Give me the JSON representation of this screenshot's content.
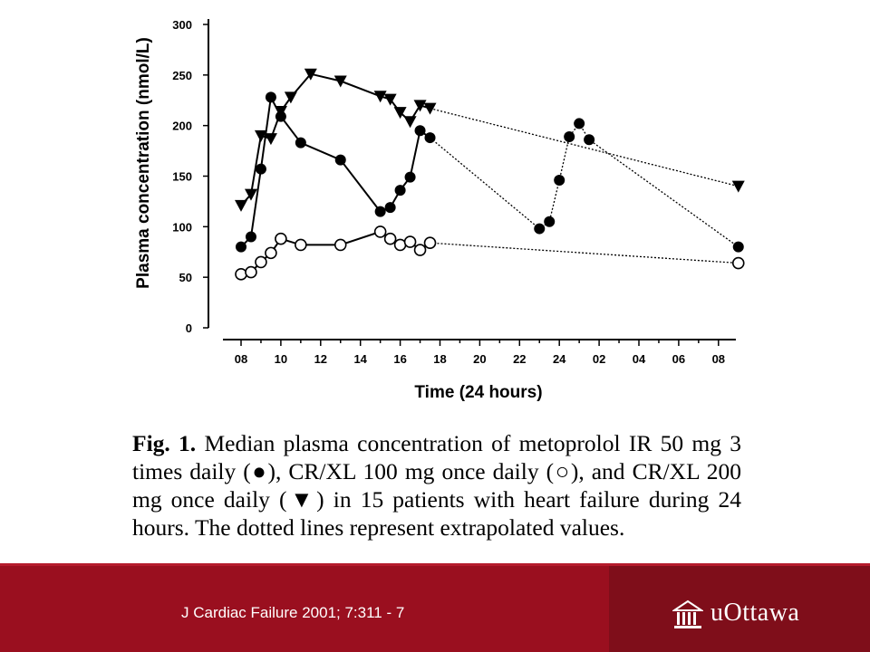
{
  "chart_data": {
    "type": "line",
    "ylabel": "Plasma concentration (nmol/L)",
    "xlabel": "Time (24 hours)",
    "ylim": [
      0,
      300
    ],
    "yticks": [
      "0",
      "50",
      "100",
      "150",
      "200",
      "250",
      "300"
    ],
    "xticks": [
      "08",
      "10",
      "12",
      "14",
      "16",
      "18",
      "20",
      "22",
      "24",
      "02",
      "04",
      "06",
      "08"
    ],
    "series": [
      {
        "marker": "filled-circle",
        "solid": [
          [
            8,
            80
          ],
          [
            8.5,
            90
          ],
          [
            9,
            157
          ],
          [
            9.5,
            228
          ],
          [
            10,
            209
          ],
          [
            11,
            183
          ],
          [
            13,
            166
          ],
          [
            15,
            115
          ],
          [
            15.5,
            119
          ],
          [
            16,
            136
          ],
          [
            16.5,
            149
          ],
          [
            17,
            195
          ],
          [
            17.5,
            188
          ]
        ],
        "dotted": [
          [
            17.5,
            188
          ],
          [
            23,
            98
          ],
          [
            23.5,
            105
          ],
          [
            24,
            146
          ],
          [
            24.5,
            189
          ],
          [
            25,
            202
          ],
          [
            25.5,
            186
          ],
          [
            33,
            80
          ]
        ]
      },
      {
        "marker": "open-circle",
        "solid": [
          [
            8,
            53
          ],
          [
            8.5,
            55
          ],
          [
            9,
            65
          ],
          [
            9.5,
            74
          ],
          [
            10,
            88
          ],
          [
            11,
            82
          ],
          [
            13,
            82
          ],
          [
            15,
            95
          ],
          [
            15.5,
            88
          ],
          [
            16,
            82
          ],
          [
            16.5,
            85
          ],
          [
            17,
            77
          ],
          [
            17.5,
            84
          ]
        ],
        "dotted": [
          [
            17.5,
            84
          ],
          [
            33,
            64
          ]
        ]
      },
      {
        "marker": "filled-triangle-down",
        "solid": [
          [
            8,
            121
          ],
          [
            8.5,
            132
          ],
          [
            9,
            190
          ],
          [
            9.5,
            187
          ],
          [
            10,
            214
          ],
          [
            10.5,
            228
          ],
          [
            11.5,
            251
          ],
          [
            13,
            244
          ],
          [
            15,
            229
          ],
          [
            15.5,
            226
          ],
          [
            16,
            213
          ],
          [
            16.5,
            204
          ],
          [
            17,
            220
          ],
          [
            17.5,
            217
          ]
        ],
        "dotted": [
          [
            17.5,
            217
          ],
          [
            33,
            140
          ]
        ]
      }
    ]
  },
  "caption": {
    "label": "Fig. 1.",
    "text": "Median plasma concentration of metoprolol IR 50 mg 3 times daily (●), CR/XL 100 mg once daily (○), and CR/XL 200 mg once daily (▼) in 15 patients with heart failure during 24 hours. The dotted lines represent extrapolated values."
  },
  "footer": {
    "citation": "J Cardiac Failure 2001; 7:311 - 7",
    "logo_text": "uOttawa",
    "logo_icon": "university-building-icon"
  }
}
